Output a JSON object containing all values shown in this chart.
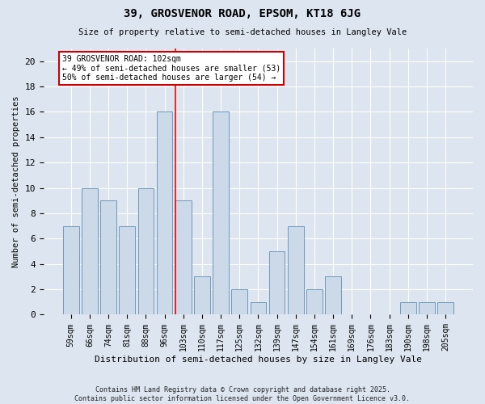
{
  "title1": "39, GROSVENOR ROAD, EPSOM, KT18 6JG",
  "title2": "Size of property relative to semi-detached houses in Langley Vale",
  "xlabel": "Distribution of semi-detached houses by size in Langley Vale",
  "ylabel": "Number of semi-detached properties",
  "categories": [
    "59sqm",
    "66sqm",
    "74sqm",
    "81sqm",
    "88sqm",
    "96sqm",
    "103sqm",
    "110sqm",
    "117sqm",
    "125sqm",
    "132sqm",
    "139sqm",
    "147sqm",
    "154sqm",
    "161sqm",
    "169sqm",
    "176sqm",
    "183sqm",
    "190sqm",
    "198sqm",
    "205sqm"
  ],
  "values": [
    7,
    10,
    9,
    7,
    10,
    16,
    9,
    3,
    16,
    2,
    1,
    5,
    7,
    2,
    3,
    0,
    0,
    0,
    1,
    1,
    1
  ],
  "bar_color": "#ccd9e8",
  "bar_edge_color": "#7098b8",
  "red_line_index": 6,
  "annotation_text": "39 GROSVENOR ROAD: 102sqm\n← 49% of semi-detached houses are smaller (53)\n50% of semi-detached houses are larger (54) →",
  "annotation_box_color": "#ffffff",
  "annotation_box_edge": "#cc0000",
  "footer": "Contains HM Land Registry data © Crown copyright and database right 2025.\nContains public sector information licensed under the Open Government Licence v3.0.",
  "background_color": "#dde6f0",
  "ylim": [
    0,
    21
  ],
  "yticks": [
    0,
    2,
    4,
    6,
    8,
    10,
    12,
    14,
    16,
    18,
    20
  ]
}
